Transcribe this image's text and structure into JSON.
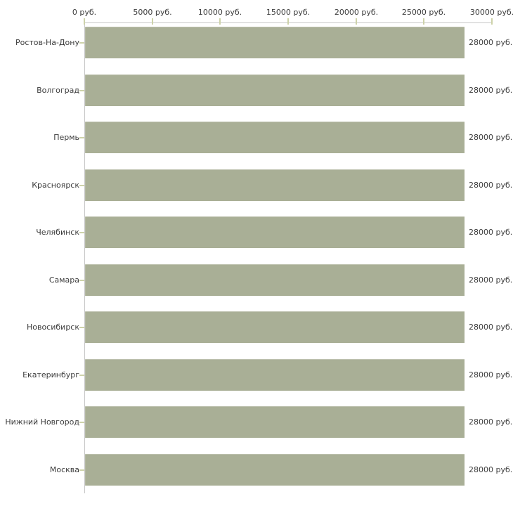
{
  "page": {
    "background": "#ffffff"
  },
  "chart_data": {
    "type": "bar",
    "orientation": "horizontal",
    "title": "",
    "categories": [
      "Ростов-На-Дону",
      "Волгоград",
      "Пермь",
      "Красноярск",
      "Челябинск",
      "Самара",
      "Новосибирск",
      "Екатеринбург",
      "Нижний Новгород",
      "Москва"
    ],
    "values": [
      28000,
      28000,
      28000,
      28000,
      28000,
      28000,
      28000,
      28000,
      28000,
      28000
    ],
    "value_labels": [
      "28000 руб.",
      "28000 руб.",
      "28000 руб.",
      "28000 руб.",
      "28000 руб.",
      "28000 руб.",
      "28000 руб.",
      "28000 руб.",
      "28000 руб.",
      "28000 руб."
    ],
    "unit": "руб.",
    "x_axis": {
      "position": "top",
      "min": 0,
      "max": 30000,
      "ticks": [
        0,
        5000,
        10000,
        15000,
        20000,
        25000,
        30000
      ],
      "tick_labels": [
        "0 руб.",
        "5000 руб.",
        "10000 руб.",
        "15000 руб.",
        "20000 руб.",
        "25000 руб.",
        "30000 руб."
      ]
    },
    "grid": "off",
    "legend": "none",
    "colors": {
      "bar": "#a9af96",
      "axis_line": "#c6c6c6",
      "tick": "#cdd2a9",
      "text": "#3c3c3c",
      "background": "#ffffff"
    }
  }
}
